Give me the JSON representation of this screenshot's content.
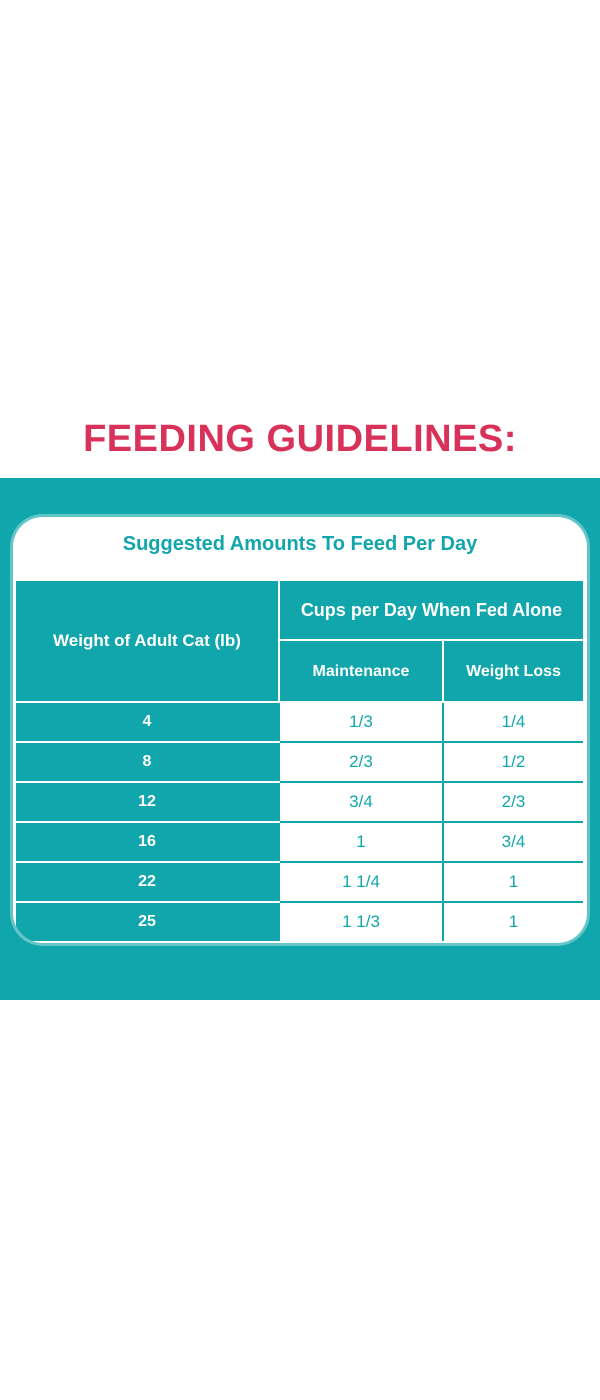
{
  "title": "FEEDING GUIDELINES:",
  "card_title": "Suggested Amounts To Feed Per Day",
  "table": {
    "header_weight": "Weight of Adult Cat (lb)",
    "header_cups": "Cups per Day When Fed Alone",
    "header_maintenance": "Maintenance",
    "header_weight_loss": "Weight Loss",
    "rows": [
      {
        "weight": "4",
        "maintenance": "1/3",
        "weight_loss": "1/4"
      },
      {
        "weight": "8",
        "maintenance": "2/3",
        "weight_loss": "1/2"
      },
      {
        "weight": "12",
        "maintenance": "3/4",
        "weight_loss": "2/3"
      },
      {
        "weight": "16",
        "maintenance": "1",
        "weight_loss": "3/4"
      },
      {
        "weight": "22",
        "maintenance": "1 1/4",
        "weight_loss": "1"
      },
      {
        "weight": "25",
        "maintenance": "1 1/3",
        "weight_loss": "1"
      }
    ]
  },
  "colors": {
    "title": "#d8325a",
    "teal": "#11a6ac",
    "white": "#ffffff"
  }
}
